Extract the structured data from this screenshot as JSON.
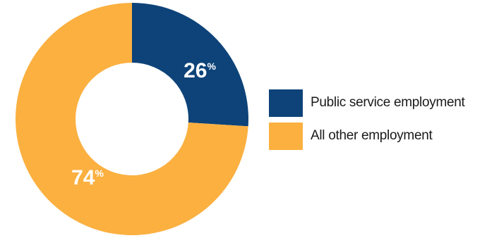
{
  "chart_data": {
    "type": "pie",
    "variant": "donut",
    "title": "",
    "categories": [
      "Public service employment",
      "All other employment"
    ],
    "values": [
      26,
      74
    ],
    "unit": "%",
    "colors": [
      "#0d4379",
      "#fbb040"
    ],
    "data_labels": [
      "26",
      "74"
    ],
    "legend": {
      "placement": "right",
      "entries": [
        "Public service employment",
        "All other employment"
      ]
    }
  }
}
